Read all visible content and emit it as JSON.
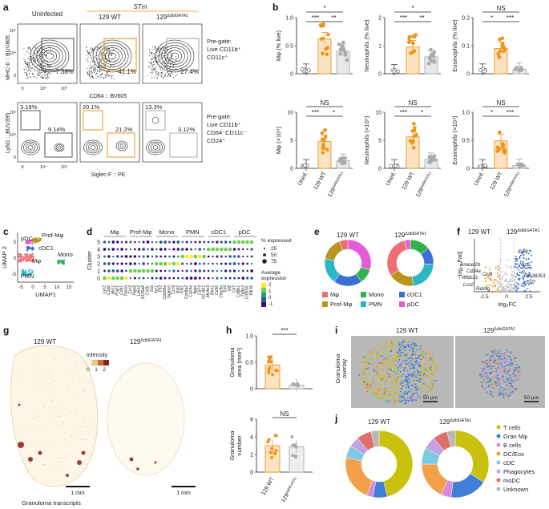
{
  "colors": {
    "wt": "#f0931a",
    "ko": "#aaaaaa",
    "dark": "#222222",
    "mphi": "#ee6e73",
    "profmphi": "#b8961e",
    "mono": "#2db34a",
    "pmn": "#2bb6c6",
    "cdc1": "#3b6fd4",
    "pdc": "#e35bd6",
    "tcell": "#c9c10e",
    "granm": "#3f7fd8",
    "bcell": "#d78ad8",
    "dceos": "#f2a04a",
    "cdc": "#7ec9e6",
    "phago": "#c2a2e2",
    "modc": "#e06f6c",
    "unknown": "#b8b8b8"
  },
  "a": {
    "letter": "a",
    "col_uninfected": "Uninfected",
    "stm_label": "STm",
    "col_wt": "129 WT",
    "col_ko": "129",
    "ko_sup": "ΔdblGATA1",
    "row1_yaxis": "MHC-II :: BUV805",
    "row1_xaxis": "CD64 :: BV605",
    "row1_pct": [
      "7.38%",
      "41.1%",
      "27.4%"
    ],
    "row1_pregate": [
      "Pre-gate:",
      "Live CD11b⁺",
      "CD11c⁺"
    ],
    "row2_yaxis": "Ly6G :: BUV395",
    "row2_xaxis": "Siglec-F :: PE",
    "row2_pct_tl": [
      "3.19%",
      "20.1%",
      "13.3%"
    ],
    "row2_pct_br": [
      "9.14%",
      "21.2%",
      "3.12%"
    ],
    "row2_pregate": [
      "Pre-gate:",
      "Live CD11b⁺",
      "CD64⁻CD11c⁻",
      "CD24⁺"
    ],
    "ticks_y": [
      "10⁵",
      "10⁴",
      "0"
    ],
    "ticks_x": [
      "0",
      "10⁴",
      "10⁵"
    ]
  },
  "b": {
    "letter": "b",
    "groups": [
      "Uninf.",
      "129 WT",
      "129ΔdblGATA1"
    ],
    "panels": [
      {
        "ylabel": "Mφ (% live)",
        "ticks": [
          "0",
          "0.5",
          "1.0"
        ],
        "sig": [
          "***",
          "**"
        ],
        "top": "*"
      },
      {
        "ylabel": "Neutrophils (% live)",
        "ticks": [
          "0",
          "1",
          "2"
        ],
        "sig": [
          "***",
          "**"
        ],
        "top": "*"
      },
      {
        "ylabel": "Eosinophils (% live)",
        "ticks": [
          "0",
          "0.1",
          "0.2"
        ],
        "sig": [
          "*",
          "***"
        ],
        "top": "NS"
      },
      {
        "ylabel": "Mφ (×10⁴)",
        "ticks": [
          "0",
          "5",
          "10"
        ],
        "sig": [
          "***",
          "*"
        ],
        "top": "NS"
      },
      {
        "ylabel": "Neutrophils (×10⁴)",
        "ticks": [
          "0",
          "5",
          "10"
        ],
        "sig": [
          "***",
          "*"
        ],
        "top": "NS"
      },
      {
        "ylabel": "Eosinophils (×10⁴)",
        "ticks": [
          "0",
          "0.5",
          "1.0"
        ],
        "sig": [
          "*",
          "***"
        ],
        "top": "NS"
      }
    ]
  },
  "c": {
    "letter": "c",
    "labels": [
      "pDC",
      "Prof-Mφ",
      "cDC1",
      "Mφ",
      "Mono",
      "PMN"
    ],
    "xaxis": "UMAP1",
    "yaxis": "UMAP 2",
    "xticks": [
      "-5",
      "0",
      "5",
      "10",
      "15"
    ],
    "yticks": [
      "5",
      "0",
      "-5"
    ]
  },
  "d": {
    "letter": "d",
    "groups": [
      "Mφ",
      "Prof-Mφ",
      "Mono",
      "PMN",
      "cDC1",
      "pDC"
    ],
    "yaxis": "Cluster",
    "clusters": [
      "5",
      "4",
      "3",
      "2",
      "1",
      "0"
    ],
    "genes": [
      "Lyz2",
      "C1qb",
      "Mrc1",
      "Fcgr1",
      "Cdk1",
      "Top2a",
      "Ccr2",
      "Plac8",
      "Ly6c2",
      "S100a8",
      "Csf3r",
      "Il1b",
      "Xcr1",
      "Flt3",
      "Cd209a",
      "Siglech",
      "Ccr9",
      "Bst2",
      "Klk1",
      "Cox6a2",
      "Cd24a",
      "Itgax",
      "Cd74",
      "H2-Ab1",
      "Ms4a3",
      "Ifitm1",
      "Cd36",
      "Clec9a",
      "Tcf4",
      "Irf8",
      "Cd7",
      "Cd8b1",
      "Tgfbr3",
      "Cd300c",
      "Klk1b"
    ],
    "legend_size_title": "% expressed",
    "legend_sizes": [
      "25",
      "50",
      "75"
    ],
    "legend_color_title": [
      "Average",
      "expression"
    ],
    "legend_color_ticks": [
      "2",
      "1",
      "0",
      "-1"
    ]
  },
  "e": {
    "letter": "e",
    "titles": [
      "129 WT",
      "129ΔdblGATA1"
    ],
    "legend": [
      "Mφ",
      "Mono",
      "cDC1",
      "Prof-Mφ",
      "PMN",
      "pDC"
    ]
  },
  "f": {
    "letter": "f",
    "title_left": "129 WT",
    "title_right": "129ΔdblGATA1",
    "xaxis": "log₂FC",
    "yaxis": "−log₁₀ Padj",
    "xticks": [
      "-2.5",
      "0",
      "2.5"
    ],
    "genes_left": [
      "Rnasel2b",
      "Cd24a",
      "Wfdc21",
      "Lcn2",
      "Ccl9",
      "Retnlg"
    ],
    "genes_right": [
      "Ifi44l",
      "Nrp2",
      "Gm38353",
      "Ccl7",
      "Ifi"
    ]
  },
  "g": {
    "letter": "g",
    "titles": [
      "129 WT",
      "129ΔdblGATA1"
    ],
    "legend_title": "Intensity",
    "legend_ticks": [
      "0",
      "1",
      "2"
    ],
    "scale": "1 mm",
    "caption": "Granuloma transcripts"
  },
  "h": {
    "letter": "h",
    "top": {
      "ylabel": [
        "Granuloma",
        "area (mm²)"
      ],
      "ticks": [
        "0",
        "0.5",
        "1.0"
      ],
      "sig": "***"
    },
    "bottom": {
      "ylabel": [
        "Granuloma",
        "number"
      ],
      "ticks": [
        "0",
        "2",
        "4",
        "6"
      ],
      "sig": "NS"
    },
    "groups": [
      "129 WT",
      "129ΔdblGATA1"
    ]
  },
  "i": {
    "letter": "i",
    "titles": [
      "129 WT",
      "129ΔdblGATA1"
    ],
    "ylabel": [
      "Granuloma",
      "overlay"
    ],
    "scale": "50 µm"
  },
  "j": {
    "letter": "j",
    "titles": [
      "129 WT",
      "129ΔdblGATA1"
    ],
    "legend": [
      "T cells",
      "Gran Mφ",
      "B cells",
      "DC/Eos",
      "cDC",
      "Phagocytes",
      "moDC",
      "Unknown"
    ]
  }
}
